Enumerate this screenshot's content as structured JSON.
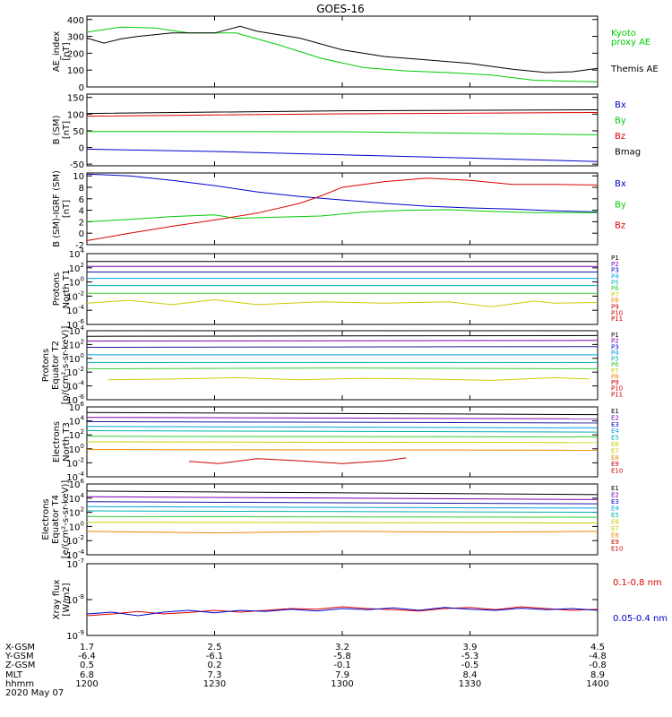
{
  "title": "GOES-16",
  "colors": {
    "black": "#000000",
    "blue": "#0000cc",
    "green": "#00cc00",
    "red": "#dd0000",
    "navy": "#1a1aa0",
    "purple": "#7a00b0",
    "cyan": "#00a0e0",
    "teal": "#00b0b0",
    "lime": "#33cc33",
    "yellow": "#cccc00",
    "orange": "#ee8800",
    "crimson": "#cc0000"
  },
  "chart_data": [
    {
      "type": "line",
      "ylabel": [
        "AE_index",
        "[nT]"
      ],
      "ylim": [
        0,
        420
      ],
      "yticks": [
        0,
        100,
        200,
        300,
        400
      ],
      "scale": "linear",
      "legend": [
        {
          "text": "Kyoto",
          "color": "#00cc00"
        },
        {
          "text": "proxy AE",
          "color": "#00cc00"
        },
        {
          "text": "Themis AE",
          "color": "#000000"
        }
      ],
      "series": [
        {
          "color": "#00cc00",
          "x": [
            0,
            8,
            16,
            24,
            35,
            45,
            55,
            65,
            75,
            85,
            95,
            105,
            120
          ],
          "y": [
            325,
            355,
            350,
            320,
            320,
            250,
            170,
            115,
            95,
            85,
            70,
            40,
            30
          ]
        },
        {
          "color": "#000000",
          "x": [
            0,
            4,
            8,
            12,
            20,
            30,
            36,
            40,
            50,
            60,
            70,
            80,
            90,
            100,
            108,
            114,
            120
          ],
          "y": [
            290,
            260,
            285,
            300,
            320,
            320,
            360,
            330,
            290,
            220,
            180,
            160,
            140,
            105,
            85,
            90,
            110
          ]
        }
      ]
    },
    {
      "type": "line",
      "ylabel": [
        "B (SM)",
        "[nT]"
      ],
      "ylim": [
        -55,
        160
      ],
      "yticks": [
        -50,
        0,
        50,
        100,
        150
      ],
      "scale": "linear",
      "legend": [
        {
          "text": "Bx",
          "color": "#0000cc"
        },
        {
          "text": "By",
          "color": "#00cc00"
        },
        {
          "text": "Bz",
          "color": "#dd0000"
        },
        {
          "text": "Bmag",
          "color": "#000000"
        }
      ],
      "series": [
        {
          "color": "#000000",
          "x": [
            0,
            60,
            120
          ],
          "y": [
            102,
            110,
            113
          ]
        },
        {
          "color": "#dd0000",
          "x": [
            0,
            60,
            120
          ],
          "y": [
            94,
            101,
            105
          ]
        },
        {
          "color": "#00cc00",
          "x": [
            0,
            60,
            120
          ],
          "y": [
            48,
            47,
            38
          ]
        },
        {
          "color": "#0000cc",
          "x": [
            0,
            30,
            60,
            90,
            120
          ],
          "y": [
            -5,
            -12,
            -22,
            -32,
            -42
          ]
        }
      ]
    },
    {
      "type": "line",
      "ylabel": [
        "B (SM)-IGRF (SM)",
        "[nT]"
      ],
      "ylim": [
        -2,
        10.5
      ],
      "yticks": [
        -2,
        0,
        2,
        4,
        6,
        8,
        10
      ],
      "scale": "linear",
      "legend": [
        {
          "text": "Bx",
          "color": "#0000cc"
        },
        {
          "text": "By",
          "color": "#00cc00"
        },
        {
          "text": "Bz",
          "color": "#dd0000"
        }
      ],
      "series": [
        {
          "color": "#0000cc",
          "x": [
            0,
            10,
            20,
            30,
            40,
            50,
            60,
            70,
            80,
            90,
            100,
            110,
            120
          ],
          "y": [
            10.3,
            10,
            9.2,
            8.3,
            7.2,
            6.4,
            5.8,
            5.2,
            4.7,
            4.4,
            4.2,
            3.9,
            3.7
          ]
        },
        {
          "color": "#00cc00",
          "x": [
            0,
            10,
            20,
            30,
            35,
            45,
            55,
            65,
            75,
            85,
            95,
            105,
            120
          ],
          "y": [
            2,
            2.4,
            2.9,
            3.2,
            2.6,
            2.8,
            3,
            3.7,
            4,
            4.1,
            3.8,
            3.6,
            3.6
          ]
        },
        {
          "color": "#dd0000",
          "x": [
            0,
            10,
            20,
            30,
            40,
            50,
            55,
            60,
            70,
            80,
            90,
            100,
            110,
            120
          ],
          "y": [
            -1.3,
            0,
            1.2,
            2.3,
            3.5,
            5.2,
            6.5,
            8,
            9,
            9.6,
            9.2,
            8.5,
            8.5,
            8.4
          ]
        }
      ]
    },
    {
      "type": "line",
      "ylabel": [
        "Protons",
        "North T1"
      ],
      "ylim": [
        -6,
        4
      ],
      "yticks": [
        -6,
        -4,
        -2,
        0,
        2,
        4
      ],
      "scale": "log",
      "legend": [
        {
          "text": "P1",
          "color": "#000000"
        },
        {
          "text": "P2",
          "color": "#7a00b0"
        },
        {
          "text": "P3",
          "color": "#0000cc"
        },
        {
          "text": "P4",
          "color": "#00a0e0"
        },
        {
          "text": "P5",
          "color": "#00b0b0"
        },
        {
          "text": "P6",
          "color": "#33cc33"
        },
        {
          "text": "P7",
          "color": "#cccc00"
        },
        {
          "text": "P8",
          "color": "#ee8800"
        },
        {
          "text": "P9",
          "color": "#cc0000"
        },
        {
          "text": "P10",
          "color": "#cc0000"
        },
        {
          "text": "P11",
          "color": "#cc0000"
        }
      ],
      "series": [
        {
          "color": "#000000",
          "x": [
            0,
            120
          ],
          "y": [
            2.9,
            2.9
          ]
        },
        {
          "color": "#7a00b0",
          "x": [
            0,
            120
          ],
          "y": [
            2.2,
            2.2
          ]
        },
        {
          "color": "#1a1aa0",
          "x": [
            0,
            120
          ],
          "y": [
            1.4,
            1.4
          ]
        },
        {
          "color": "#00a0e0",
          "x": [
            0,
            120
          ],
          "y": [
            0.5,
            0.5
          ]
        },
        {
          "color": "#00b0b0",
          "x": [
            0,
            120
          ],
          "y": [
            -0.5,
            -0.5
          ]
        },
        {
          "color": "#33cc33",
          "x": [
            0,
            120
          ],
          "y": [
            -1.6,
            -1.6
          ]
        },
        {
          "color": "#cccc00",
          "x": [
            0,
            10,
            20,
            30,
            40,
            55,
            70,
            85,
            95,
            105,
            110,
            120
          ],
          "y": [
            -3,
            -2.6,
            -3.2,
            -2.5,
            -3.2,
            -2.8,
            -3,
            -2.8,
            -3.5,
            -2.7,
            -3,
            -2.9
          ]
        }
      ]
    },
    {
      "type": "line",
      "ylabel": [
        "Protons",
        "Equator T2",
        "[p/(cm²-s-sr-keV)]"
      ],
      "ylim": [
        -6,
        4
      ],
      "yticks": [
        -6,
        -4,
        -2,
        0,
        2,
        4
      ],
      "scale": "log",
      "legend": [
        {
          "text": "P1",
          "color": "#000000"
        },
        {
          "text": "P2",
          "color": "#7a00b0"
        },
        {
          "text": "P3",
          "color": "#0000cc"
        },
        {
          "text": "P4",
          "color": "#00a0e0"
        },
        {
          "text": "P5",
          "color": "#00b0b0"
        },
        {
          "text": "P6",
          "color": "#33cc33"
        },
        {
          "text": "P7",
          "color": "#cccc00"
        },
        {
          "text": "P8",
          "color": "#ee8800"
        },
        {
          "text": "P9",
          "color": "#cc0000"
        },
        {
          "text": "P10",
          "color": "#cc0000"
        },
        {
          "text": "P11",
          "color": "#cc0000"
        }
      ],
      "series": [
        {
          "color": "#000000",
          "x": [
            0,
            120
          ],
          "y": [
            3.2,
            3.3
          ]
        },
        {
          "color": "#7a00b0",
          "x": [
            0,
            120
          ],
          "y": [
            2.5,
            2.6
          ]
        },
        {
          "color": "#1a1aa0",
          "x": [
            0,
            120
          ],
          "y": [
            1.6,
            1.7
          ]
        },
        {
          "color": "#00a0e0",
          "x": [
            0,
            120
          ],
          "y": [
            0.5,
            0.5
          ]
        },
        {
          "color": "#00b0b0",
          "x": [
            0,
            120
          ],
          "y": [
            -0.6,
            -0.6
          ]
        },
        {
          "color": "#33cc33",
          "x": [
            0,
            60,
            120
          ],
          "y": [
            -1.5,
            -1.4,
            -1.5
          ]
        },
        {
          "color": "#cccc00",
          "x": [
            5,
            20,
            35,
            50,
            65,
            80,
            95,
            110,
            118
          ],
          "y": [
            -3.1,
            -3.0,
            -2.8,
            -3.1,
            -2.9,
            -3.0,
            -3.2,
            -2.8,
            -3.0
          ]
        }
      ]
    },
    {
      "type": "line",
      "ylabel": [
        "Electrons",
        "North T3"
      ],
      "ylim": [
        -4,
        6
      ],
      "yticks": [
        -4,
        -2,
        0,
        2,
        4,
        6
      ],
      "scale": "log",
      "legend": [
        {
          "text": "E1",
          "color": "#000000"
        },
        {
          "text": "E2",
          "color": "#7a00b0"
        },
        {
          "text": "E3",
          "color": "#0000cc"
        },
        {
          "text": "E4",
          "color": "#00a0e0"
        },
        {
          "text": "E5",
          "color": "#00b0b0"
        },
        {
          "text": "E6",
          "color": "#cccc00"
        },
        {
          "text": "E7",
          "color": "#cccc00"
        },
        {
          "text": "E8",
          "color": "#ee8800"
        },
        {
          "text": "E9",
          "color": "#cc0000"
        },
        {
          "text": "E10",
          "color": "#cc0000"
        }
      ],
      "series": [
        {
          "color": "#000000",
          "x": [
            0,
            120
          ],
          "y": [
            5.2,
            4.9
          ]
        },
        {
          "color": "#7a00b0",
          "x": [
            0,
            120
          ],
          "y": [
            4.5,
            4.3
          ]
        },
        {
          "color": "#1a1aa0",
          "x": [
            0,
            120
          ],
          "y": [
            3.9,
            3.7
          ]
        },
        {
          "color": "#00a0e0",
          "x": [
            0,
            120
          ],
          "y": [
            3.2,
            3.0
          ]
        },
        {
          "color": "#00b0b0",
          "x": [
            0,
            120
          ],
          "y": [
            2.6,
            2.4
          ]
        },
        {
          "color": "#33cc33",
          "x": [
            0,
            120
          ],
          "y": [
            1.8,
            1.7
          ]
        },
        {
          "color": "#cccc00",
          "x": [
            0,
            120
          ],
          "y": [
            1.0,
            0.9
          ]
        },
        {
          "color": "#ee8800",
          "x": [
            0,
            120
          ],
          "y": [
            -0.1,
            -0.2
          ]
        },
        {
          "color": "#cc0000",
          "x": [
            24,
            31,
            40,
            50,
            60,
            70,
            75
          ],
          "y": [
            -1.8,
            -2.1,
            -1.4,
            -1.7,
            -2.1,
            -1.7,
            -1.3
          ]
        }
      ]
    },
    {
      "type": "line",
      "ylabel": [
        "Electrons",
        "Equator T4",
        "[e/(cm²-s-sr-keV)]"
      ],
      "ylim": [
        -4,
        6
      ],
      "yticks": [
        -4,
        -2,
        0,
        2,
        4,
        6
      ],
      "scale": "log",
      "legend": [
        {
          "text": "E1",
          "color": "#000000"
        },
        {
          "text": "E2",
          "color": "#7a00b0"
        },
        {
          "text": "E3",
          "color": "#0000cc"
        },
        {
          "text": "E4",
          "color": "#00a0e0"
        },
        {
          "text": "E5",
          "color": "#00b0b0"
        },
        {
          "text": "E6",
          "color": "#cccc00"
        },
        {
          "text": "E7",
          "color": "#cccc00"
        },
        {
          "text": "E8",
          "color": "#ee8800"
        },
        {
          "text": "E9",
          "color": "#cc0000"
        },
        {
          "text": "E10",
          "color": "#cc0000"
        }
      ],
      "series": [
        {
          "color": "#000000",
          "x": [
            0,
            120
          ],
          "y": [
            5.0,
            4.5
          ]
        },
        {
          "color": "#7a00b0",
          "x": [
            0,
            120
          ],
          "y": [
            4.2,
            3.8
          ]
        },
        {
          "color": "#1a1aa0",
          "x": [
            0,
            120
          ],
          "y": [
            3.5,
            3.2
          ]
        },
        {
          "color": "#00a0e0",
          "x": [
            0,
            120
          ],
          "y": [
            2.8,
            2.6
          ]
        },
        {
          "color": "#00b0b0",
          "x": [
            0,
            120
          ],
          "y": [
            2.2,
            2.0
          ]
        },
        {
          "color": "#33cc33",
          "x": [
            0,
            120
          ],
          "y": [
            1.4,
            1.3
          ]
        },
        {
          "color": "#cccc00",
          "x": [
            0,
            120
          ],
          "y": [
            0.6,
            0.5
          ]
        },
        {
          "color": "#ee8800",
          "x": [
            0,
            30,
            60,
            90,
            120
          ],
          "y": [
            -0.7,
            -0.9,
            -0.7,
            -0.8,
            -0.7
          ]
        }
      ]
    },
    {
      "type": "line",
      "ylabel": [
        "Xray flux",
        "[W/m2]"
      ],
      "ylim": [
        -9,
        -7
      ],
      "yticks": [
        -9,
        -8,
        -7
      ],
      "scale": "log",
      "legend": [
        {
          "text": "0.1-0.8 nm",
          "color": "#dd0000"
        },
        {
          "text": "0.05-0.4 nm",
          "color": "#0000cc"
        }
      ],
      "series": [
        {
          "color": "#dd0000",
          "x": [
            0,
            6,
            12,
            18,
            24,
            30,
            36,
            42,
            48,
            54,
            60,
            66,
            72,
            78,
            84,
            90,
            96,
            102,
            108,
            114,
            120
          ],
          "y": [
            -8.45,
            -8.4,
            -8.33,
            -8.4,
            -8.36,
            -8.3,
            -8.35,
            -8.3,
            -8.25,
            -8.27,
            -8.2,
            -8.25,
            -8.28,
            -8.32,
            -8.25,
            -8.22,
            -8.28,
            -8.2,
            -8.25,
            -8.3,
            -8.27
          ]
        },
        {
          "color": "#0000cc",
          "x": [
            0,
            6,
            12,
            18,
            24,
            30,
            36,
            42,
            48,
            54,
            60,
            66,
            72,
            78,
            84,
            90,
            96,
            102,
            108,
            114,
            120
          ],
          "y": [
            -8.4,
            -8.35,
            -8.45,
            -8.35,
            -8.3,
            -8.37,
            -8.3,
            -8.33,
            -8.27,
            -8.32,
            -8.25,
            -8.28,
            -8.23,
            -8.3,
            -8.22,
            -8.27,
            -8.3,
            -8.24,
            -8.28,
            -8.25,
            -8.3
          ]
        }
      ]
    }
  ],
  "xaxis": {
    "row_labels": [
      "X-GSM",
      "Y-GSM",
      "Z-GSM",
      "MLT",
      "hhmm",
      "2020 May 07"
    ],
    "columns": [
      [
        "1.7",
        "-6.4",
        "0.5",
        "6.8",
        "1200"
      ],
      [
        "2.5",
        "-6.1",
        "0.2",
        "7.3",
        "1230"
      ],
      [
        "3.2",
        "-5.8",
        "-0.1",
        "7.9",
        "1300"
      ],
      [
        "3.9",
        "-5.3",
        "-0.5",
        "8.4",
        "1330"
      ],
      [
        "4.5",
        "-4.8",
        "-0.8",
        "8.9",
        "1400"
      ]
    ]
  }
}
